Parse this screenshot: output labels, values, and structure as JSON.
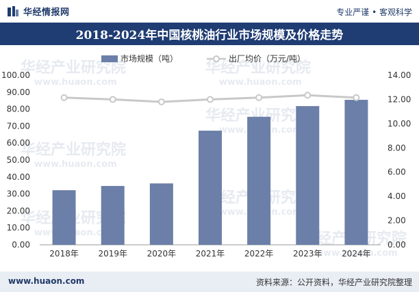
{
  "header": {
    "brand": "华经情报网",
    "tagline": "专业严谨 • 客观科学"
  },
  "footer": {
    "website": "www.huaon.com",
    "source": "资料来源：公开资料，华经产业研究院整理"
  },
  "watermark": {
    "cn": "华经产业研究院",
    "en": "www.huaon.com"
  },
  "chart_data": {
    "type": "bar",
    "title": "2018-2024年中国核桃油行业市场规模及价格走势",
    "categories": [
      "2018年",
      "2019年",
      "2020年",
      "2021年",
      "2022年",
      "2023年",
      "2024年"
    ],
    "series": [
      {
        "name": "市场规模（吨）",
        "type": "bar",
        "axis": "left",
        "color": "#6b7fa8",
        "values": [
          32.2,
          34.7,
          36.2,
          67.3,
          75.5,
          81.8,
          85.5
        ]
      },
      {
        "name": "出厂均价（万元/吨）",
        "type": "line",
        "axis": "right",
        "color": "#c8c8c8",
        "values": [
          12.15,
          12.0,
          11.8,
          12.0,
          12.15,
          12.35,
          12.15
        ]
      }
    ],
    "y_left": {
      "min": 0,
      "max": 100,
      "step": 10,
      "ticks": [
        "0.00",
        "10.00",
        "20.00",
        "30.00",
        "40.00",
        "50.00",
        "60.00",
        "70.00",
        "80.00",
        "90.00",
        "100.00"
      ]
    },
    "y_right": {
      "min": 0,
      "max": 14,
      "step": 2,
      "ticks": [
        "0.00",
        "2.00",
        "4.00",
        "6.00",
        "8.00",
        "10.00",
        "12.00",
        "14.00"
      ]
    },
    "legend_position": "top-center",
    "grid": false
  }
}
